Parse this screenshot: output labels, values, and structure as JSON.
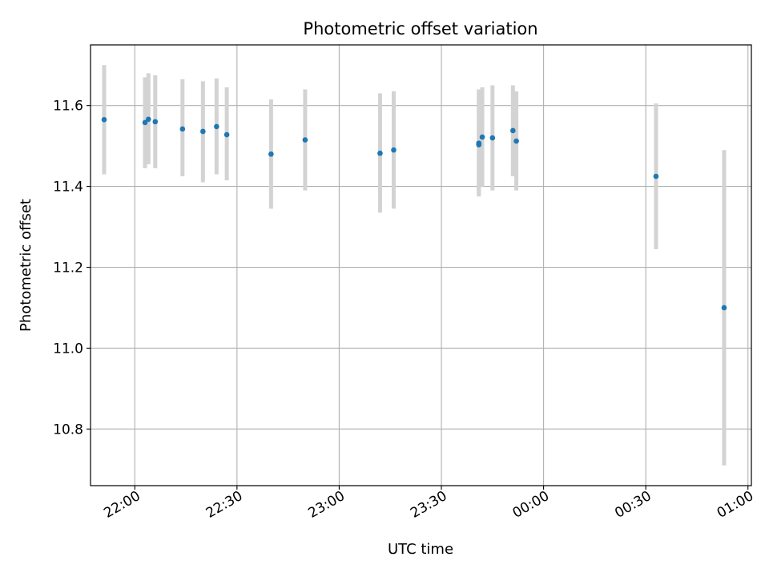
{
  "chart_data": {
    "type": "scatter",
    "title": "Photometric offset variation",
    "xlabel": "UTC time",
    "ylabel": "Photometric offset",
    "grid": true,
    "x_axis_type": "time",
    "xlim": [
      "21:47",
      "01:01"
    ],
    "ylim": [
      10.66,
      11.75
    ],
    "x_ticks": [
      "22:00",
      "22:30",
      "23:00",
      "23:30",
      "00:00",
      "00:30",
      "01:00"
    ],
    "y_ticks": [
      "10.8",
      "11.0",
      "11.2",
      "11.4",
      "11.6"
    ],
    "colors": {
      "points": "#1f77b4",
      "error_bars": "#d3d3d3",
      "grid": "#b0b0b0"
    },
    "series": [
      {
        "points": [
          {
            "x": "21:51",
            "y": 11.565,
            "y_lo": 11.43,
            "y_hi": 11.7
          },
          {
            "x": "22:03",
            "y": 11.558,
            "y_lo": 11.445,
            "y_hi": 11.67
          },
          {
            "x": "22:04",
            "y": 11.566,
            "y_lo": 11.455,
            "y_hi": 11.68
          },
          {
            "x": "22:06",
            "y": 11.56,
            "y_lo": 11.445,
            "y_hi": 11.675
          },
          {
            "x": "22:14",
            "y": 11.542,
            "y_lo": 11.425,
            "y_hi": 11.665
          },
          {
            "x": "22:20",
            "y": 11.536,
            "y_lo": 11.41,
            "y_hi": 11.66
          },
          {
            "x": "22:24",
            "y": 11.548,
            "y_lo": 11.43,
            "y_hi": 11.667
          },
          {
            "x": "22:27",
            "y": 11.528,
            "y_lo": 11.415,
            "y_hi": 11.645
          },
          {
            "x": "22:40",
            "y": 11.48,
            "y_lo": 11.345,
            "y_hi": 11.615
          },
          {
            "x": "22:50",
            "y": 11.515,
            "y_lo": 11.39,
            "y_hi": 11.64
          },
          {
            "x": "23:12",
            "y": 11.482,
            "y_lo": 11.335,
            "y_hi": 11.63
          },
          {
            "x": "23:16",
            "y": 11.49,
            "y_lo": 11.345,
            "y_hi": 11.635
          },
          {
            "x": "23:41",
            "y": 11.507,
            "y_lo": 11.375,
            "y_hi": 11.64
          },
          {
            "x": "23:41",
            "y": 11.503,
            "y_lo": 11.38,
            "y_hi": 11.635
          },
          {
            "x": "23:42",
            "y": 11.522,
            "y_lo": 11.4,
            "y_hi": 11.645
          },
          {
            "x": "23:45",
            "y": 11.52,
            "y_lo": 11.39,
            "y_hi": 11.65
          },
          {
            "x": "23:51",
            "y": 11.538,
            "y_lo": 11.425,
            "y_hi": 11.65
          },
          {
            "x": "23:52",
            "y": 11.512,
            "y_lo": 11.39,
            "y_hi": 11.635
          },
          {
            "x": "00:33",
            "y": 11.425,
            "y_lo": 11.245,
            "y_hi": 11.605
          },
          {
            "x": "00:53",
            "y": 11.1,
            "y_lo": 10.71,
            "y_hi": 11.49
          }
        ]
      }
    ]
  }
}
